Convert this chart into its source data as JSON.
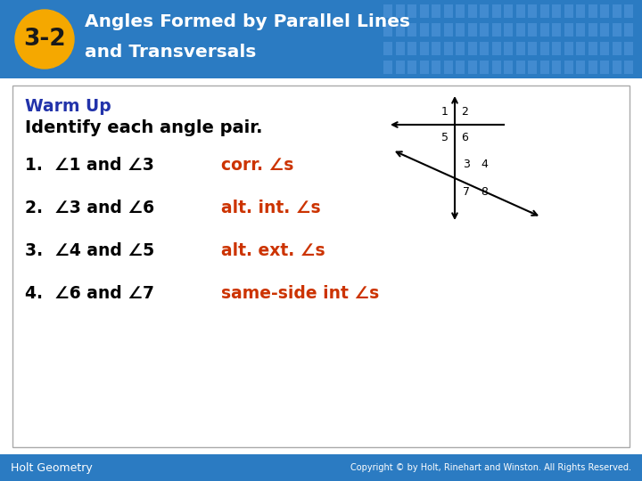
{
  "title_badge": "3-2",
  "title_line1": "Angles Formed by Parallel Lines",
  "title_line2": "and Transversals",
  "header_bg_color": "#2b7bc2",
  "header_text_color": "#ffffff",
  "badge_bg_color": "#f5a800",
  "badge_text_color": "#1a1a1a",
  "warm_up_label": "Warm Up",
  "warm_up_color": "#2233aa",
  "subtitle": "Identify each angle pair.",
  "subtitle_color": "#000000",
  "items": [
    {
      "num": "1.",
      "angle_text": "1 and 3",
      "answer": "corr. s"
    },
    {
      "num": "2.",
      "angle_text": "3 and 6",
      "answer": "alt. int. s"
    },
    {
      "num": "3.",
      "angle_text": "4 and 5",
      "answer": "alt. ext. s"
    },
    {
      "num": "4.",
      "angle_text": "6 and 7",
      "answer": "same-side int s"
    }
  ],
  "answer_color": "#cc3300",
  "content_bg_color": "#ffffff",
  "content_border_color": "#aaaaaa",
  "footer_bg_color": "#2b7bc2",
  "footer_text_left": "Holt Geometry",
  "footer_text_right": "Copyright © by Holt, Rinehart and Winston. All Rights Reserved.",
  "footer_text_color": "#ffffff",
  "fig_width": 7.2,
  "fig_height": 5.4
}
